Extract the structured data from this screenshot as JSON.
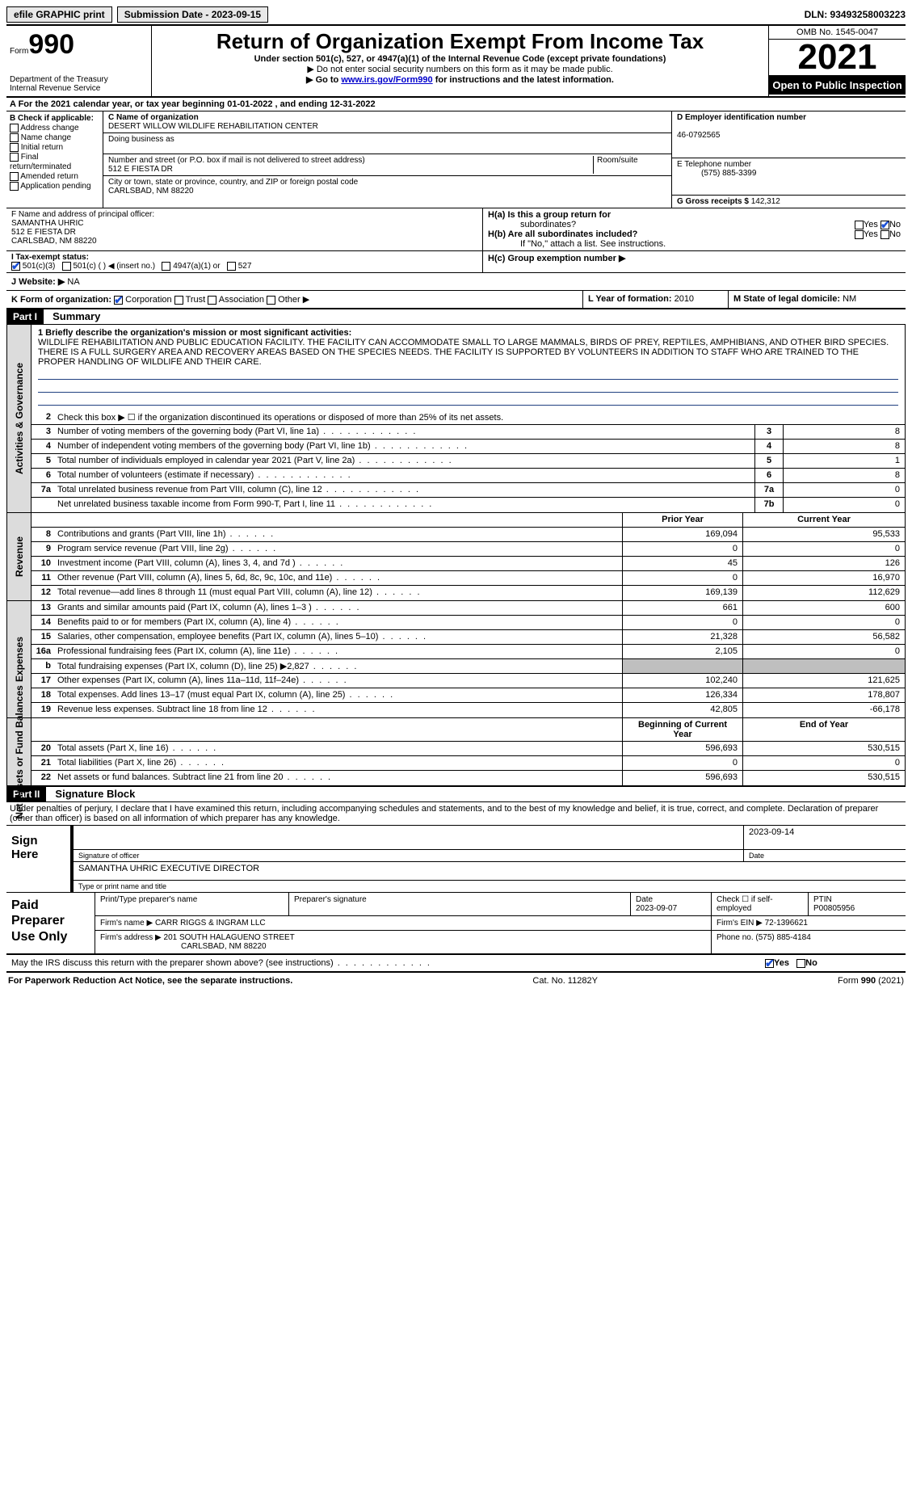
{
  "topbar": {
    "efile": "efile GRAPHIC print",
    "submission": "Submission Date - 2023-09-15",
    "dln": "DLN: 93493258003223"
  },
  "header": {
    "form_word": "Form",
    "form_num": "990",
    "dept": "Department of the Treasury",
    "irs": "Internal Revenue Service",
    "title": "Return of Organization Exempt From Income Tax",
    "subtitle": "Under section 501(c), 527, or 4947(a)(1) of the Internal Revenue Code (except private foundations)",
    "note1": "▶ Do not enter social security numbers on this form as it may be made public.",
    "note2_pre": "▶ Go to ",
    "note2_link": "www.irs.gov/Form990",
    "note2_post": " for instructions and the latest information.",
    "omb": "OMB No. 1545-0047",
    "year": "2021",
    "open": "Open to Public Inspection"
  },
  "rowA": {
    "text_pre": "A For the 2021 calendar year, or tax year beginning ",
    "begin": "01-01-2022",
    "mid": " , and ending ",
    "end": "12-31-2022"
  },
  "colB": {
    "title": "B Check if applicable:",
    "i1": "Address change",
    "i2": "Name change",
    "i3": "Initial return",
    "i4": "Final return/terminated",
    "i5": "Amended return",
    "i6": "Application pending"
  },
  "colC": {
    "name_lbl": "C Name of organization",
    "name": "DESERT WILLOW WILDLIFE REHABILITATION CENTER",
    "dba_lbl": "Doing business as",
    "street_lbl": "Number and street (or P.O. box if mail is not delivered to street address)",
    "room_lbl": "Room/suite",
    "street": "512 E FIESTA DR",
    "city_lbl": "City or town, state or province, country, and ZIP or foreign postal code",
    "city": "CARLSBAD, NM  88220"
  },
  "colD": {
    "ein_lbl": "D Employer identification number",
    "ein": "46-0792565",
    "tel_lbl": "E Telephone number",
    "tel": "(575) 885-3399",
    "gross_lbl": "G Gross receipts $",
    "gross": "142,312"
  },
  "rowF": {
    "lbl": "F  Name and address of principal officer:",
    "name": "SAMANTHA UHRIC",
    "street": "512 E FIESTA DR",
    "city": "CARLSBAD, NM  88220"
  },
  "rowH": {
    "ha_lbl": "H(a)  Is this a group return for",
    "ha_sub": "subordinates?",
    "hb_lbl": "H(b)  Are all subordinates included?",
    "hb_note": "If \"No,\" attach a list. See instructions.",
    "hc_lbl": "H(c)  Group exemption number ▶",
    "yes": "Yes",
    "no": "No"
  },
  "rowI": {
    "lbl": "I   Tax-exempt status:",
    "o1": "501(c)(3)",
    "o2": "501(c) (  ) ◀ (insert no.)",
    "o3": "4947(a)(1) or",
    "o4": "527"
  },
  "rowJ": {
    "lbl": "J   Website: ▶",
    "val": "NA"
  },
  "rowK": {
    "lbl": "K Form of organization:",
    "o1": "Corporation",
    "o2": "Trust",
    "o3": "Association",
    "o4": "Other ▶"
  },
  "rowL": {
    "lbl": "L Year of formation:",
    "val": "2010"
  },
  "rowM": {
    "lbl": "M State of legal domicile:",
    "val": "NM"
  },
  "part1": {
    "hdr": "Part I",
    "title": "Summary"
  },
  "summary": {
    "l1_lbl": "1  Briefly describe the organization's mission or most significant activities:",
    "l1_text": "WILDLIFE REHABILITATION AND PUBLIC EDUCATION FACILITY. THE FACILITY CAN ACCOMMODATE SMALL TO LARGE MAMMALS, BIRDS OF PREY, REPTILES, AMPHIBIANS, AND OTHER BIRD SPECIES. THERE IS A FULL SURGERY AREA AND RECOVERY AREAS BASED ON THE SPECIES NEEDS. THE FACILITY IS SUPPORTED BY VOLUNTEERS IN ADDITION TO STAFF WHO ARE TRAINED TO THE PROPER HANDLING OF WILDLIFE AND THEIR CARE.",
    "l2": "Check this box ▶ ☐  if the organization discontinued its operations or disposed of more than 25% of its net assets.",
    "rows_gov": [
      {
        "n": "3",
        "d": "Number of voting members of the governing body (Part VI, line 1a)",
        "ln": "3",
        "v": "8"
      },
      {
        "n": "4",
        "d": "Number of independent voting members of the governing body (Part VI, line 1b)",
        "ln": "4",
        "v": "8"
      },
      {
        "n": "5",
        "d": "Total number of individuals employed in calendar year 2021 (Part V, line 2a)",
        "ln": "5",
        "v": "1"
      },
      {
        "n": "6",
        "d": "Total number of volunteers (estimate if necessary)",
        "ln": "6",
        "v": "8"
      },
      {
        "n": "7a",
        "d": "Total unrelated business revenue from Part VIII, column (C), line 12",
        "ln": "7a",
        "v": "0"
      },
      {
        "n": "",
        "d": "Net unrelated business taxable income from Form 990-T, Part I, line 11",
        "ln": "7b",
        "v": "0"
      }
    ],
    "col_prior": "Prior Year",
    "col_current": "Current Year",
    "rows_rev": [
      {
        "n": "8",
        "d": "Contributions and grants (Part VIII, line 1h)",
        "p": "169,094",
        "c": "95,533"
      },
      {
        "n": "9",
        "d": "Program service revenue (Part VIII, line 2g)",
        "p": "0",
        "c": "0"
      },
      {
        "n": "10",
        "d": "Investment income (Part VIII, column (A), lines 3, 4, and 7d )",
        "p": "45",
        "c": "126"
      },
      {
        "n": "11",
        "d": "Other revenue (Part VIII, column (A), lines 5, 6d, 8c, 9c, 10c, and 11e)",
        "p": "0",
        "c": "16,970"
      },
      {
        "n": "12",
        "d": "Total revenue—add lines 8 through 11 (must equal Part VIII, column (A), line 12)",
        "p": "169,139",
        "c": "112,629"
      }
    ],
    "rows_exp": [
      {
        "n": "13",
        "d": "Grants and similar amounts paid (Part IX, column (A), lines 1–3 )",
        "p": "661",
        "c": "600"
      },
      {
        "n": "14",
        "d": "Benefits paid to or for members (Part IX, column (A), line 4)",
        "p": "0",
        "c": "0"
      },
      {
        "n": "15",
        "d": "Salaries, other compensation, employee benefits (Part IX, column (A), lines 5–10)",
        "p": "21,328",
        "c": "56,582"
      },
      {
        "n": "16a",
        "d": "Professional fundraising fees (Part IX, column (A), line 11e)",
        "p": "2,105",
        "c": "0"
      },
      {
        "n": "b",
        "d": "Total fundraising expenses (Part IX, column (D), line 25) ▶2,827",
        "p": "GREY",
        "c": "GREY"
      },
      {
        "n": "17",
        "d": "Other expenses (Part IX, column (A), lines 11a–11d, 11f–24e)",
        "p": "102,240",
        "c": "121,625"
      },
      {
        "n": "18",
        "d": "Total expenses. Add lines 13–17 (must equal Part IX, column (A), line 25)",
        "p": "126,334",
        "c": "178,807"
      },
      {
        "n": "19",
        "d": "Revenue less expenses. Subtract line 18 from line 12",
        "p": "42,805",
        "c": "-66,178"
      }
    ],
    "col_begin": "Beginning of Current Year",
    "col_end": "End of Year",
    "rows_net": [
      {
        "n": "20",
        "d": "Total assets (Part X, line 16)",
        "p": "596,693",
        "c": "530,515"
      },
      {
        "n": "21",
        "d": "Total liabilities (Part X, line 26)",
        "p": "0",
        "c": "0"
      },
      {
        "n": "22",
        "d": "Net assets or fund balances. Subtract line 21 from line 20",
        "p": "596,693",
        "c": "530,515"
      }
    ],
    "side_gov": "Activities & Governance",
    "side_rev": "Revenue",
    "side_exp": "Expenses",
    "side_net": "Net Assets or Fund Balances"
  },
  "part2": {
    "hdr": "Part II",
    "title": "Signature Block"
  },
  "sig": {
    "decl": "Under penalties of perjury, I declare that I have examined this return, including accompanying schedules and statements, and to the best of my knowledge and belief, it is true, correct, and complete. Declaration of preparer (other than officer) is based on all information of which preparer has any knowledge.",
    "sign_here": "Sign Here",
    "sig_officer": "Signature of officer",
    "date_lbl": "Date",
    "date": "2023-09-14",
    "type_name": "SAMANTHA UHRIC  EXECUTIVE DIRECTOR",
    "type_lbl": "Type or print name and title"
  },
  "prep": {
    "side": "Paid Preparer Use Only",
    "h_name": "Print/Type preparer's name",
    "h_sig": "Preparer's signature",
    "h_date": "Date",
    "date": "2023-09-07",
    "h_check": "Check ☐ if self-employed",
    "h_ptin": "PTIN",
    "ptin": "P00805956",
    "firm_lbl": "Firm's name    ▶",
    "firm": "CARR RIGGS & INGRAM LLC",
    "ein_lbl": "Firm's EIN ▶",
    "ein": "72-1396621",
    "addr_lbl": "Firm's address ▶",
    "addr1": "201 SOUTH HALAGUENO STREET",
    "addr2": "CARLSBAD, NM  88220",
    "phone_lbl": "Phone no.",
    "phone": "(575) 885-4184"
  },
  "discuss": {
    "q": "May the IRS discuss this return with the preparer shown above? (see instructions)",
    "yes": "Yes",
    "no": "No"
  },
  "footer": {
    "left": "For Paperwork Reduction Act Notice, see the separate instructions.",
    "mid": "Cat. No. 11282Y",
    "right_pre": "Form ",
    "right_form": "990",
    "right_post": " (2021)"
  }
}
